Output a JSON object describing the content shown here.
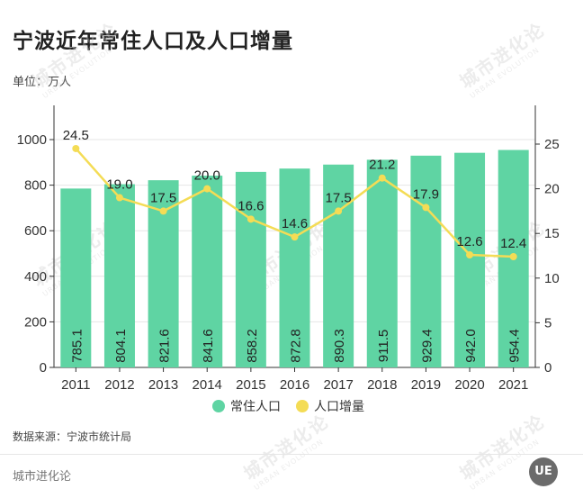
{
  "title": "宁波近年常住人口及人口增量",
  "unit": "单位：万人",
  "source": "数据来源：宁波市统计局",
  "brand": "城市进化论",
  "logo_text": "UE",
  "watermark": {
    "text": "城市进化论",
    "sub": "URBAN EVOLUTION"
  },
  "colors": {
    "bar": "#5fd4a3",
    "line": "#f4dc55",
    "axis": "#333333",
    "grid": "#e6e6e6"
  },
  "chart_data": {
    "type": "bar+line",
    "categories": [
      "2011",
      "2012",
      "2013",
      "2014",
      "2015",
      "2016",
      "2017",
      "2018",
      "2019",
      "2020",
      "2021"
    ],
    "series": [
      {
        "name": "常住人口",
        "type": "bar",
        "axis": "left",
        "values": [
          785.1,
          804.1,
          821.6,
          841.6,
          858.2,
          872.8,
          890.3,
          911.5,
          929.4,
          942.0,
          954.4
        ],
        "labels": [
          "785.1",
          "804.1",
          "821.6",
          "841.6",
          "858.2",
          "872.8",
          "890.3",
          "911.5",
          "929.4",
          "942.0",
          "954.4"
        ]
      },
      {
        "name": "人口增量",
        "type": "line",
        "axis": "right",
        "values": [
          24.5,
          19.0,
          17.5,
          20.0,
          16.6,
          14.6,
          17.5,
          21.2,
          17.9,
          12.6,
          12.4
        ],
        "labels": [
          "24.5",
          "19.0",
          "17.5",
          "20.0",
          "16.6",
          "14.6",
          "17.5",
          "21.2",
          "17.9",
          "12.6",
          "12.4"
        ]
      }
    ],
    "y_left": {
      "min": 0,
      "max": 1000,
      "ticks": [
        "0",
        "200",
        "400",
        "600",
        "800",
        "1000"
      ]
    },
    "y_right": {
      "min": 0,
      "max": 25,
      "ticks": [
        "0",
        "5",
        "10",
        "15",
        "20",
        "25"
      ]
    },
    "grid": true,
    "legend": "bottom-center"
  }
}
